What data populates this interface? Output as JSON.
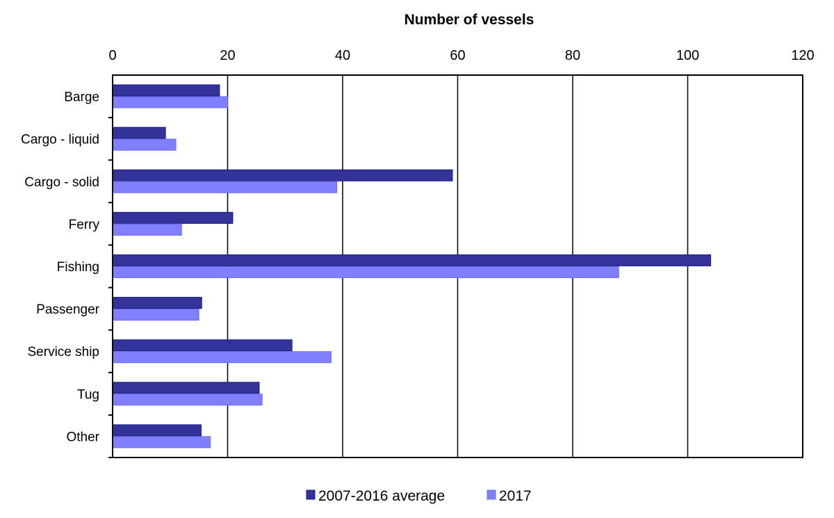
{
  "chart_data": {
    "type": "bar",
    "orientation": "horizontal",
    "title": "Number of vessels",
    "xlabel": "Number of vessels",
    "ylabel": "",
    "xlim": [
      0,
      120
    ],
    "xticks": [
      0,
      20,
      40,
      60,
      80,
      100,
      120
    ],
    "grid": true,
    "legend_position": "bottom",
    "categories": [
      "Barge",
      "Cargo - liquid",
      "Cargo - solid",
      "Ferry",
      "Fishing",
      "Passenger",
      "Service ship",
      "Tug",
      "Other"
    ],
    "series": [
      {
        "name": "2007-2016 average",
        "color": "#333399",
        "values": [
          18.6,
          9.2,
          59.1,
          20.9,
          104,
          15.5,
          31.2,
          25.5,
          15.4
        ]
      },
      {
        "name": "2017",
        "color": "#8080ff",
        "values": [
          20,
          11,
          39,
          12,
          88,
          15,
          38,
          26,
          17
        ]
      }
    ]
  }
}
